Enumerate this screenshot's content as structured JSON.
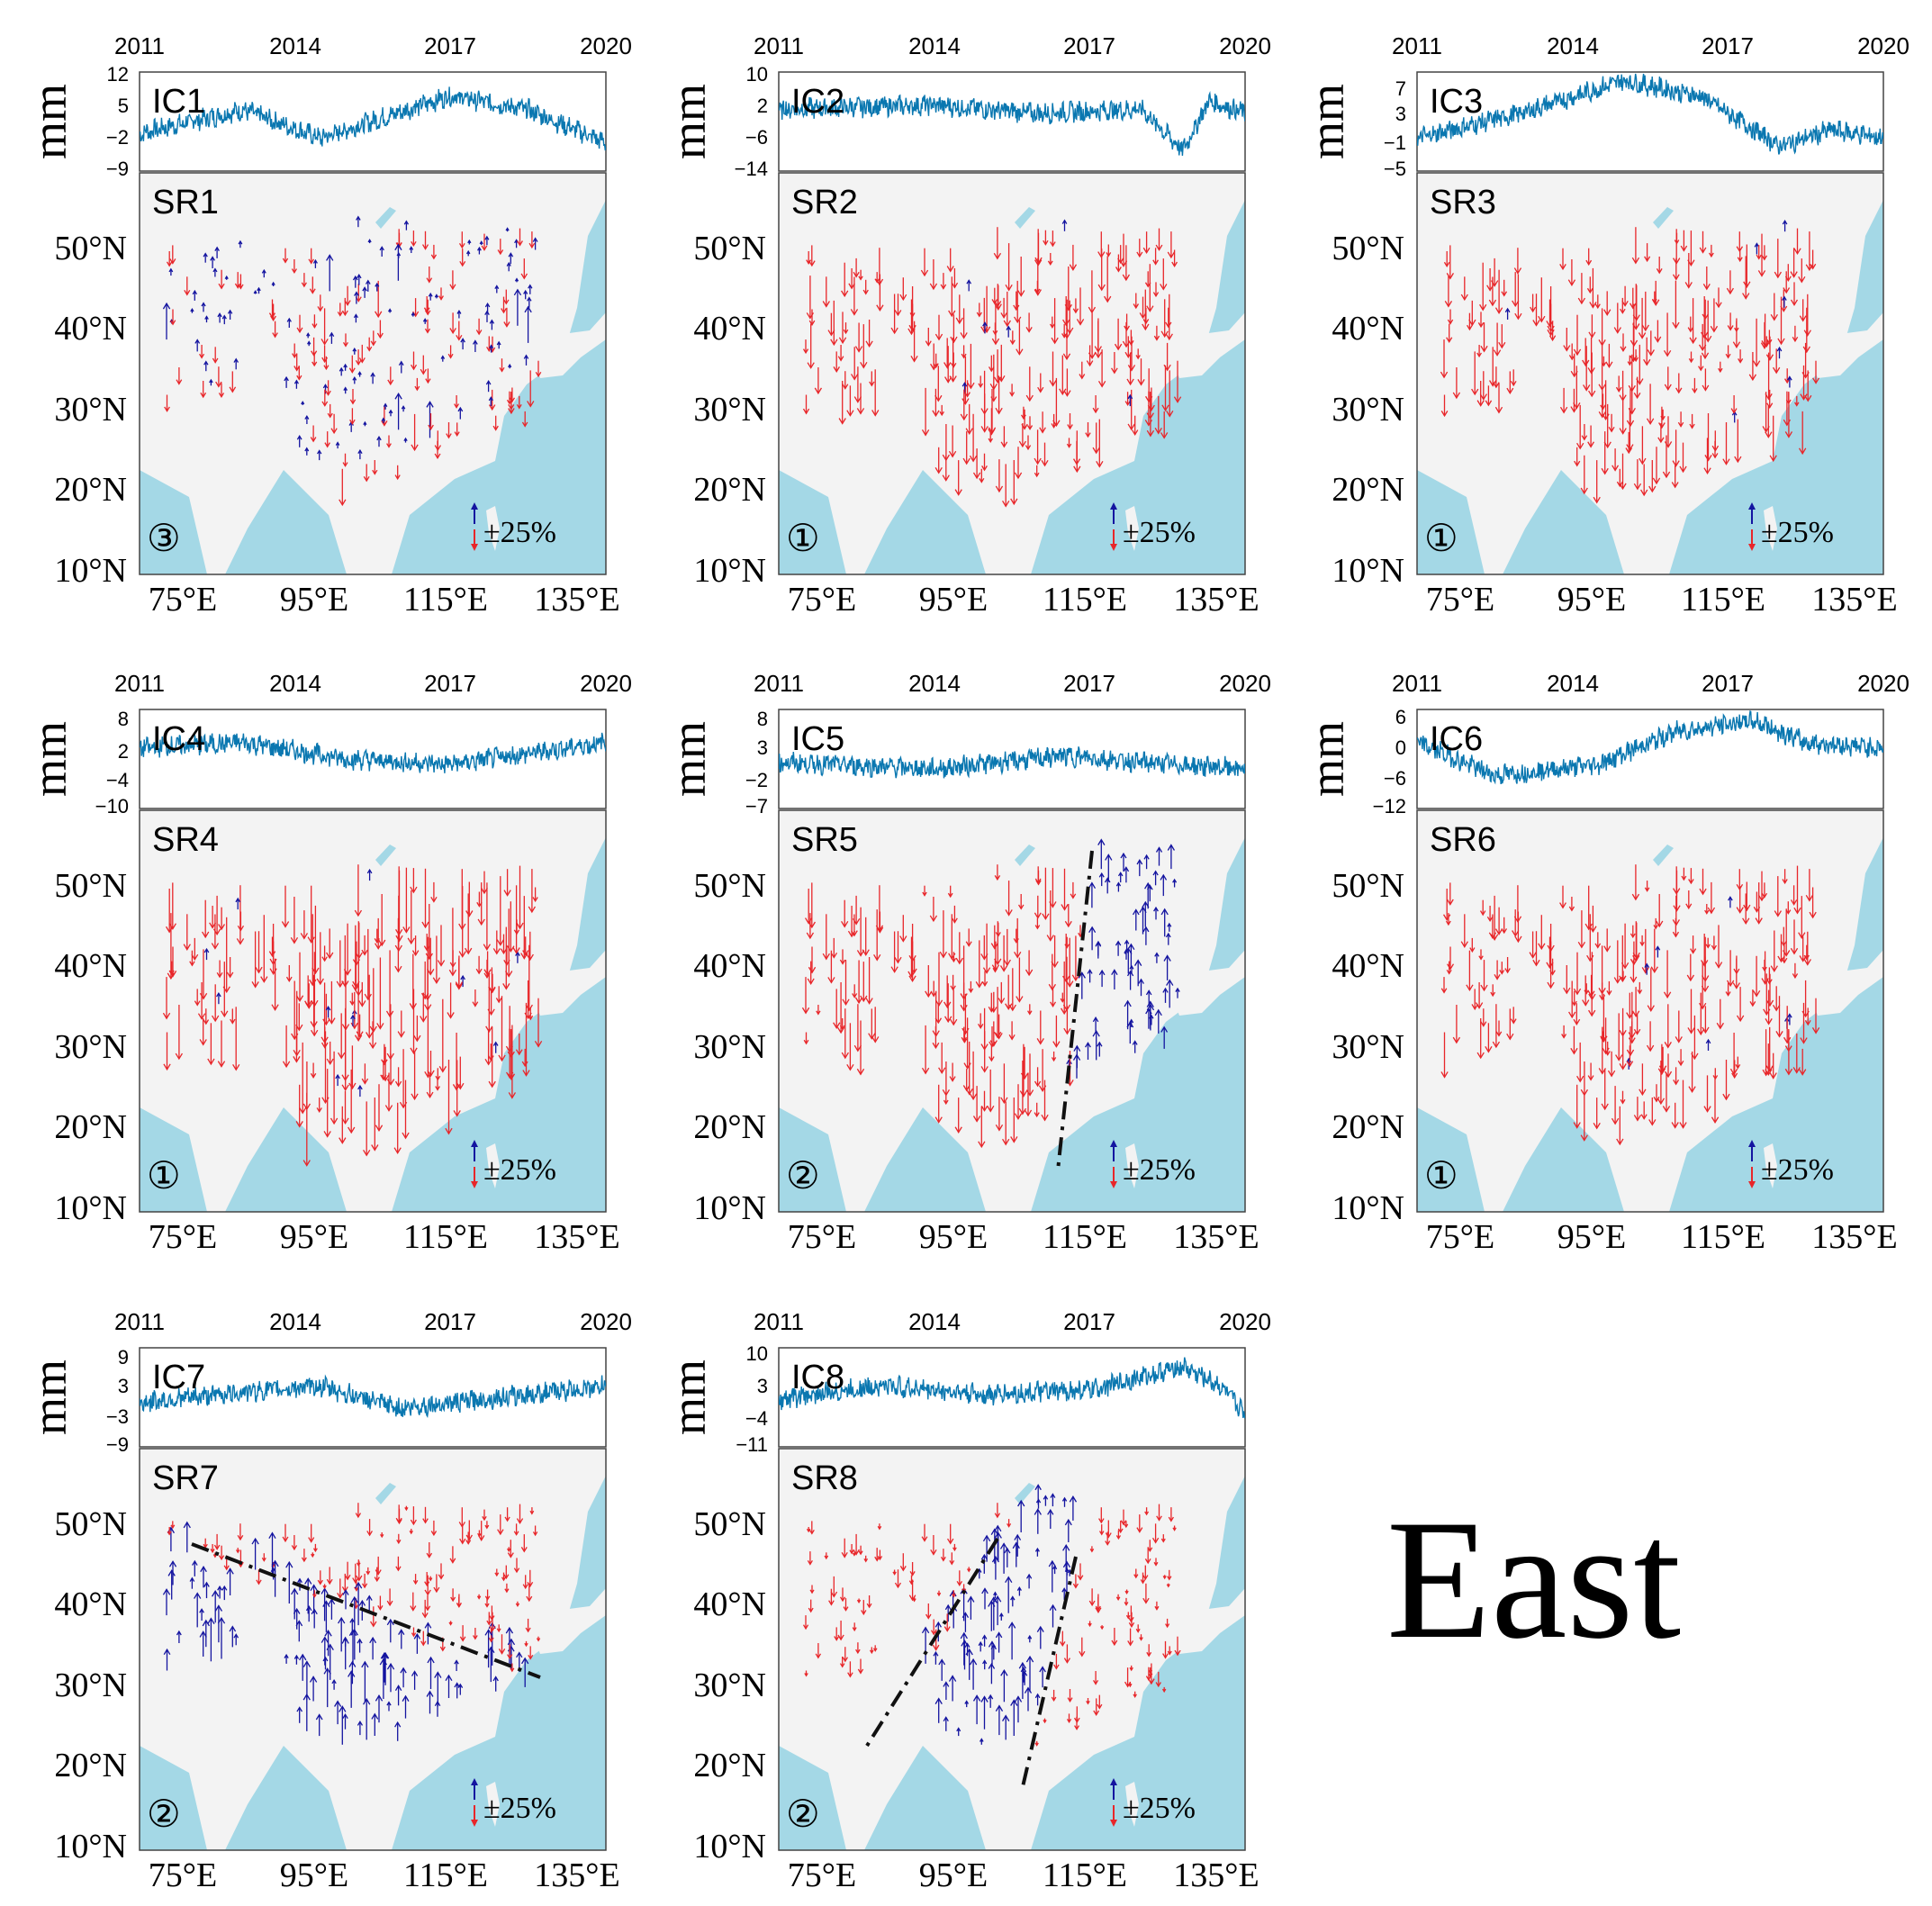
{
  "title": "East",
  "colors": {
    "sea": "#a4d8e6",
    "land": "#f3f3f3",
    "series": "#0a77b0",
    "up": "#1414a0",
    "down": "#e8262a",
    "boundary": "#111111"
  },
  "timeseries_x_ticks": [
    "2011",
    "2014",
    "2017",
    "2020"
  ],
  "ts_unit": "mm",
  "map_lat_ticks": [
    "50°N",
    "40°N",
    "30°N",
    "20°N",
    "10°N"
  ],
  "map_lon_ticks": [
    "75°E",
    "95°E",
    "115°E",
    "135°E"
  ],
  "scale_label": "±25%",
  "panels": [
    {
      "ic": "IC1",
      "sr": "SR1",
      "mark": "③",
      "yticks": [
        "12",
        "5",
        "−2",
        "−9"
      ],
      "pattern": "mixed"
    },
    {
      "ic": "IC2",
      "sr": "SR2",
      "mark": "①",
      "yticks": [
        "10",
        "2",
        "−6",
        "−14"
      ],
      "pattern": "down"
    },
    {
      "ic": "IC3",
      "sr": "SR3",
      "mark": "①",
      "yticks": [
        "7",
        "3",
        "−1",
        "−5"
      ],
      "pattern": "down"
    },
    {
      "ic": "IC4",
      "sr": "SR4",
      "mark": "①",
      "yticks": [
        "8",
        "2",
        "−4",
        "−10"
      ],
      "pattern": "down"
    },
    {
      "ic": "IC5",
      "sr": "SR5",
      "mark": "②",
      "yticks": [
        "8",
        "3",
        "−2",
        "−7"
      ],
      "pattern": "split_ew"
    },
    {
      "ic": "IC6",
      "sr": "SR6",
      "mark": "①",
      "yticks": [
        "6",
        "0",
        "−6",
        "−12"
      ],
      "pattern": "down"
    },
    {
      "ic": "IC7",
      "sr": "SR7",
      "mark": "②",
      "yticks": [
        "9",
        "3",
        "−3",
        "−9"
      ],
      "pattern": "split_ns"
    },
    {
      "ic": "IC8",
      "sr": "SR8",
      "mark": "②",
      "yticks": [
        "10",
        "3",
        "−4",
        "−11"
      ],
      "pattern": "split_band"
    }
  ],
  "chart_data": {
    "type": "line",
    "description_free": true,
    "x_range": [
      2011,
      2020
    ],
    "ylims": [
      [
        -9,
        12
      ],
      [
        -14,
        10
      ],
      [
        -5,
        7
      ],
      [
        -10,
        8
      ],
      [
        -7,
        8
      ],
      [
        -12,
        6
      ],
      [
        -9,
        9
      ],
      [
        -11,
        10
      ]
    ],
    "trend_points": [
      [
        [
          2011,
          -1
        ],
        [
          2013,
          4
        ],
        [
          2014.5,
          -2
        ],
        [
          2017,
          7
        ],
        [
          2018.5,
          4
        ],
        [
          2020,
          -3
        ]
      ],
      [
        [
          2011,
          1
        ],
        [
          2014,
          2
        ],
        [
          2016,
          0
        ],
        [
          2018,
          1
        ],
        [
          2018.8,
          -9
        ],
        [
          2019.3,
          3
        ],
        [
          2020,
          0
        ]
      ],
      [
        [
          2011,
          -1
        ],
        [
          2013,
          2
        ],
        [
          2015,
          6
        ],
        [
          2016.5,
          4
        ],
        [
          2018,
          -2
        ],
        [
          2019,
          0
        ],
        [
          2020,
          -1
        ]
      ],
      [
        [
          2011,
          1
        ],
        [
          2013,
          2
        ],
        [
          2015,
          -1
        ],
        [
          2017,
          -2
        ],
        [
          2020,
          2
        ]
      ],
      [
        [
          2011,
          0
        ],
        [
          2014,
          -1
        ],
        [
          2016.5,
          1
        ],
        [
          2018,
          0
        ],
        [
          2020,
          -1
        ]
      ],
      [
        [
          2011,
          0
        ],
        [
          2012.5,
          -6
        ],
        [
          2014.5,
          -4
        ],
        [
          2016,
          2
        ],
        [
          2017.5,
          4
        ],
        [
          2018.5,
          0
        ],
        [
          2020,
          -1
        ]
      ],
      [
        [
          2011,
          -1
        ],
        [
          2013,
          1
        ],
        [
          2014.5,
          2
        ],
        [
          2016,
          -2
        ],
        [
          2018,
          0
        ],
        [
          2020,
          2
        ]
      ],
      [
        [
          2011,
          -1
        ],
        [
          2013,
          2
        ],
        [
          2015,
          0
        ],
        [
          2017,
          1
        ],
        [
          2018.8,
          6
        ],
        [
          2019.5,
          2
        ],
        [
          2020,
          -4
        ]
      ]
    ]
  }
}
